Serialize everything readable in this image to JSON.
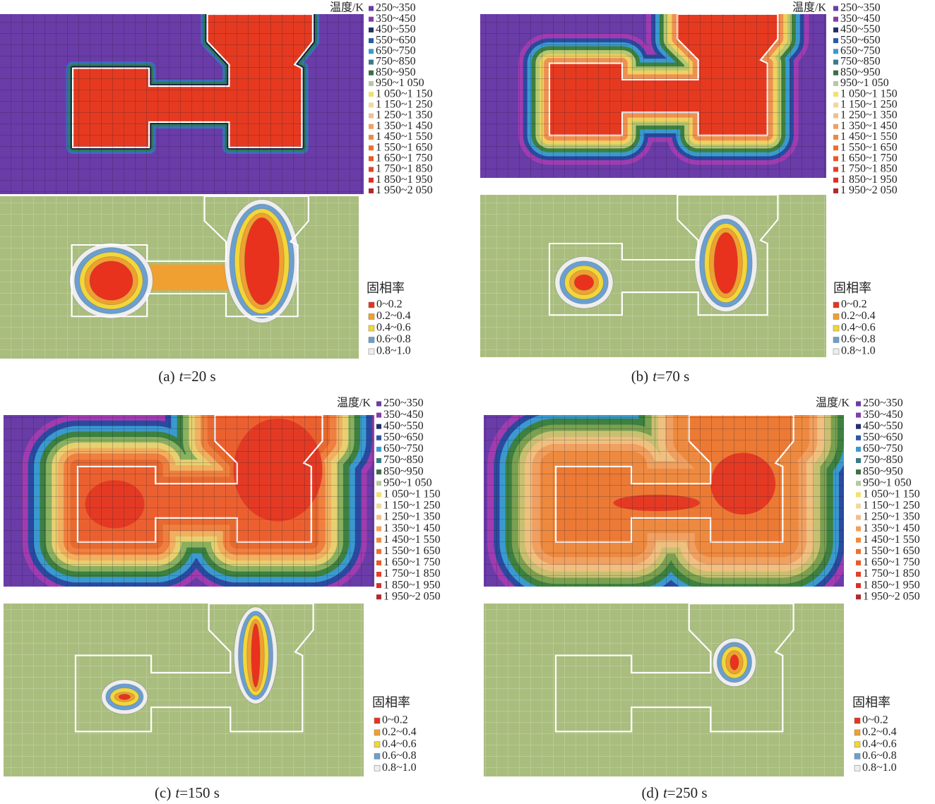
{
  "figure": {
    "temperature_legend": {
      "title": "温度/K",
      "items": [
        "250~350",
        "350~450",
        "450~550",
        "550~650",
        "650~750",
        "750~850",
        "850~950",
        "950~1 050",
        "1 050~1 150",
        "1 150~1 250",
        "1 250~1 350",
        "1 350~1 450",
        "1 450~1 550",
        "1 550~1 650",
        "1 650~1 750",
        "1 750~1 850",
        "1 850~1 950",
        "1 950~2 050"
      ]
    },
    "solid_fraction_legend": {
      "title": "固相率",
      "items": [
        "0~0.2",
        "0.2~0.4",
        "0.4~0.6",
        "0.6~0.8",
        "0.8~1.0"
      ]
    },
    "panels": [
      {
        "label": "(a)",
        "variable": "t",
        "value": "=20 s"
      },
      {
        "label": "(b)",
        "variable": "t",
        "value": "=70 s"
      },
      {
        "label": "(c)",
        "variable": "t",
        "value": "=150 s"
      },
      {
        "label": "(d)",
        "variable": "t",
        "value": "=250 s"
      }
    ]
  }
}
